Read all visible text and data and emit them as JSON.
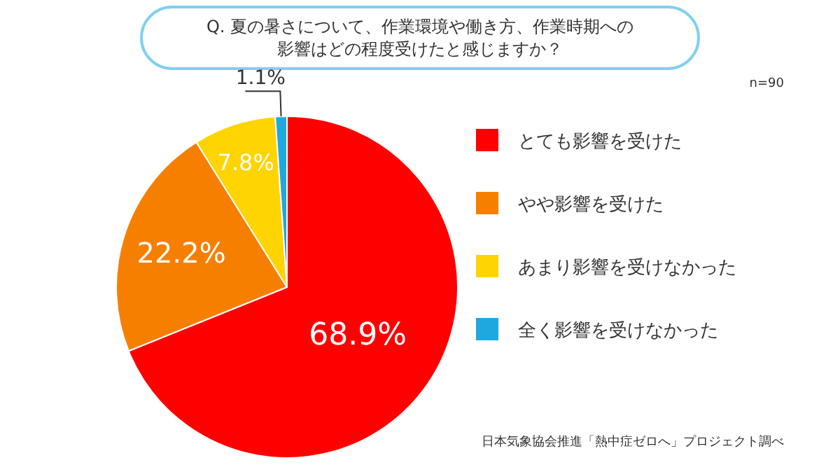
{
  "chart_data": {
    "type": "pie",
    "title": "Q. 夏の暑さについて、作業環境や働き方、作業時期への影響はどの程度受けたと感じますか？",
    "categories": [
      "とても影響を受けた",
      "やや影響を受けた",
      "あまり影響を受けなかった",
      "全く影響を受けなかった"
    ],
    "values": [
      68.9,
      22.2,
      7.8,
      1.1
    ],
    "value_labels": [
      "68.9%",
      "22.2%",
      "7.8%",
      "1.1%"
    ],
    "colors": [
      "#ff0000",
      "#f77f00",
      "#ffd400",
      "#1fa8e0"
    ],
    "legend": "right",
    "annotations": [
      "n=90",
      "日本気象協会推進「熱中症ゼロへ」プロジェクト調べ"
    ]
  }
}
